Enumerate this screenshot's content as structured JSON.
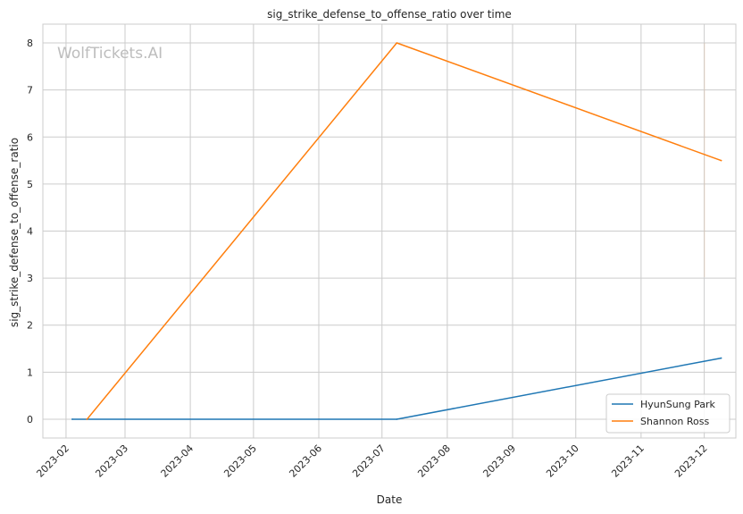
{
  "chart_data": {
    "type": "line",
    "title": "sig_strike_defense_to_offense_ratio over time",
    "xlabel": "Date",
    "ylabel": "sig_strike_defense_to_offense_ratio",
    "watermark": "WolfTickets.AI",
    "x_ticks": [
      "2023-02",
      "2023-03",
      "2023-04",
      "2023-05",
      "2023-06",
      "2023-07",
      "2023-08",
      "2023-09",
      "2023-10",
      "2023-11",
      "2023-12"
    ],
    "y_ticks": [
      0,
      1,
      2,
      3,
      4,
      5,
      6,
      7,
      8
    ],
    "xlim": [
      "2023-01-21",
      "2023-12-16"
    ],
    "ylim": [
      -0.4,
      8.4
    ],
    "grid": true,
    "legend_position": "bottom-right",
    "series": [
      {
        "name": "HyunSung Park",
        "color": "#1f77b4",
        "points": [
          {
            "x": "2023-02-04",
            "y": 0
          },
          {
            "x": "2023-07-08",
            "y": 0
          },
          {
            "x": "2023-12-09",
            "y": 1.3
          }
        ]
      },
      {
        "name": "Shannon Ross",
        "color": "#ff7f0e",
        "points": [
          {
            "x": "2023-02-11",
            "y": 0
          },
          {
            "x": "2023-07-08",
            "y": 8.0
          },
          {
            "x": "2023-12-09",
            "y": 5.5
          }
        ]
      }
    ]
  }
}
